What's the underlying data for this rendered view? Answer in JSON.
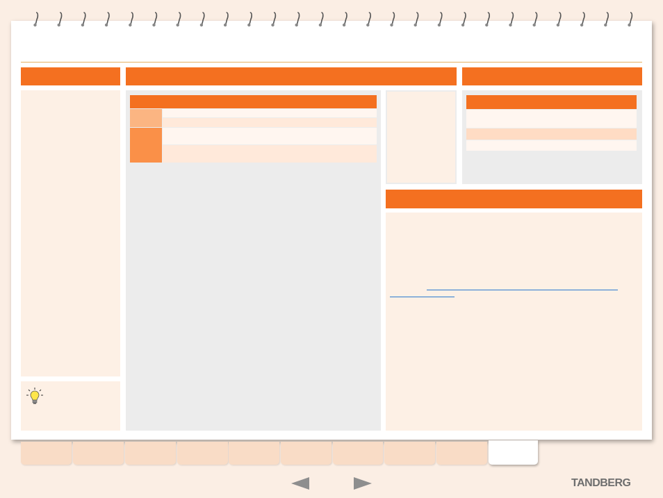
{
  "brand": {
    "logo_text": "TANDBERG"
  },
  "colors": {
    "accent": "#f47020",
    "panel_cream": "#fdf0e5",
    "panel_gray": "#ececec",
    "table_header": "#f47020",
    "row_light": "#fff6f0",
    "row_peach": "#ffe9da",
    "marker_light": "#fbb582",
    "marker_dark": "#fa9048",
    "link_blue": "#2a7ad0"
  },
  "icons": {
    "tip": "lightbulb-icon",
    "prev": "arrow-left-icon",
    "next": "arrow-right-icon",
    "binding": "spiral-binding"
  },
  "tabs": {
    "count": 10,
    "active_index": 9
  }
}
